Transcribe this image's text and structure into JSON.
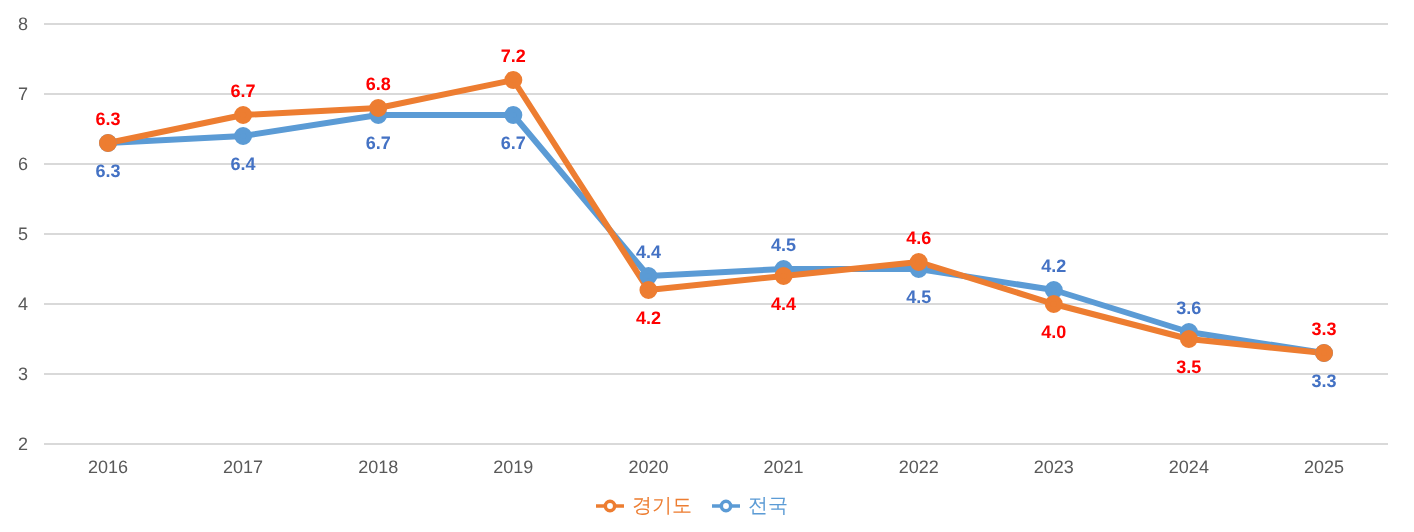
{
  "chart_data": {
    "type": "line",
    "categories": [
      "2016",
      "2017",
      "2018",
      "2019",
      "2020",
      "2021",
      "2022",
      "2023",
      "2024",
      "2025"
    ],
    "series": [
      {
        "name": "전국",
        "color": "#5b9bd5",
        "values": [
          6.3,
          6.4,
          6.7,
          6.7,
          4.4,
          4.5,
          4.5,
          4.2,
          3.6,
          3.3
        ],
        "value_labels": [
          "6.3",
          "6.4",
          "6.7",
          "6.7",
          "4.4",
          "4.5",
          "4.5",
          "4.2",
          "3.6",
          "3.3"
        ]
      },
      {
        "name": "경기도",
        "color": "#ed7d31",
        "values": [
          6.3,
          6.7,
          6.8,
          7.2,
          4.2,
          4.4,
          4.6,
          4.0,
          3.5,
          3.3
        ],
        "value_labels": [
          "6.3",
          "6.7",
          "6.8",
          "7.2",
          "4.2",
          "4.4",
          "4.6",
          "4.0",
          "3.5",
          "3.3"
        ]
      }
    ],
    "ylim": [
      2,
      8
    ],
    "yticks": [
      2,
      3,
      4,
      5,
      6,
      7,
      8
    ],
    "grid": "y",
    "legend": "bottom",
    "marker": "circle",
    "line_style": "solid"
  }
}
